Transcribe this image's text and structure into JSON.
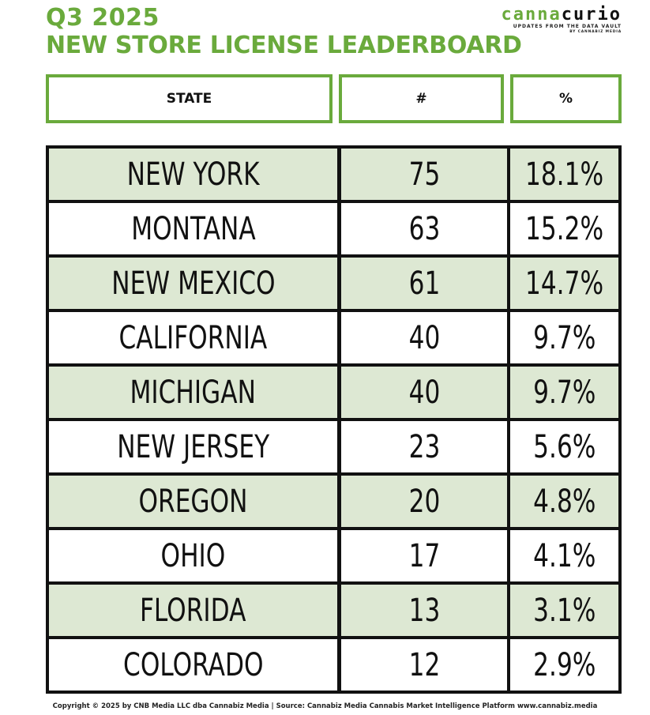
{
  "header": {
    "title_line1": "Q3 2025",
    "title_line2": "NEW STORE LICENSE LEADERBOARD",
    "brand_part1": "canna",
    "brand_part2": "curio",
    "tagline": "UPDATES FROM THE DATA VAULT",
    "tagline_by": "BY CANNABIZ MEDIA"
  },
  "colors": {
    "accent": "#6aaa3c",
    "row_shade": "#dde8d3",
    "border": "#111111"
  },
  "footer": {
    "text": "Copyright © 2025 by CNB Media LLC dba Cannabiz Media | Source: Cannabiz Media Cannabis Market Intelligence Platform www.cannabiz.media"
  },
  "chart_data": {
    "type": "table",
    "columns": [
      "STATE",
      "#",
      "%"
    ],
    "rows": [
      {
        "state": "NEW YORK",
        "count": "75",
        "pct": "18.1%"
      },
      {
        "state": "MONTANA",
        "count": "63",
        "pct": "15.2%"
      },
      {
        "state": "NEW MEXICO",
        "count": "61",
        "pct": "14.7%"
      },
      {
        "state": "CALIFORNIA",
        "count": "40",
        "pct": "9.7%"
      },
      {
        "state": "MICHIGAN",
        "count": "40",
        "pct": "9.7%"
      },
      {
        "state": "NEW JERSEY",
        "count": "23",
        "pct": "5.6%"
      },
      {
        "state": "OREGON",
        "count": "20",
        "pct": "4.8%"
      },
      {
        "state": "OHIO",
        "count": "17",
        "pct": "4.1%"
      },
      {
        "state": "FLORIDA",
        "count": "13",
        "pct": "3.1%"
      },
      {
        "state": "COLORADO",
        "count": "12",
        "pct": "2.9%"
      }
    ]
  }
}
